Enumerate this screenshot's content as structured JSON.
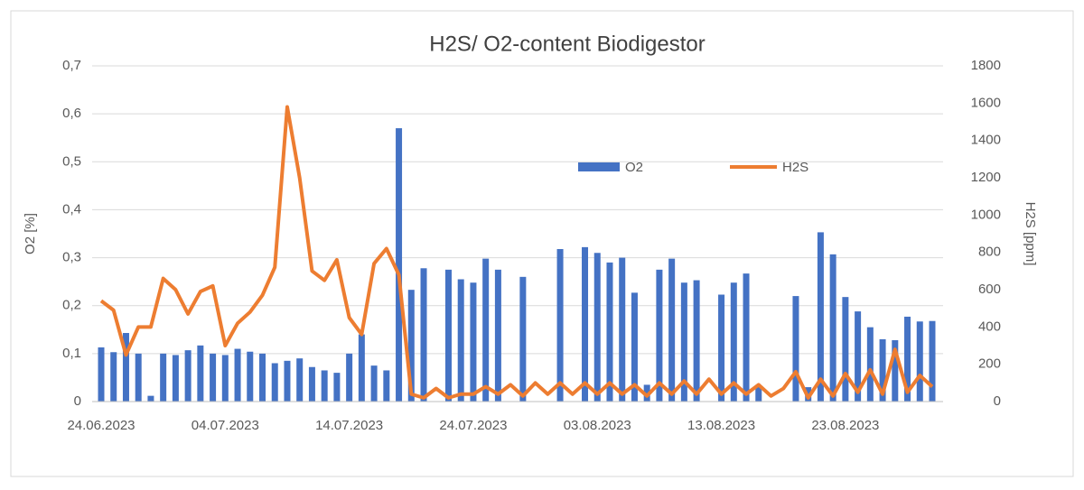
{
  "chart_data": {
    "type": "bar-line",
    "title": "H2S/ O2-content  Biodigestor",
    "ylabel": "O2 [%]",
    "y2label": "H2S [ppm]",
    "x": [
      "24.06.2023",
      "25.06.2023",
      "26.06.2023",
      "27.06.2023",
      "28.06.2023",
      "29.06.2023",
      "30.06.2023",
      "01.07.2023",
      "02.07.2023",
      "03.07.2023",
      "04.07.2023",
      "05.07.2023",
      "06.07.2023",
      "07.07.2023",
      "08.07.2023",
      "09.07.2023",
      "10.07.2023",
      "11.07.2023",
      "12.07.2023",
      "13.07.2023",
      "14.07.2023",
      "15.07.2023",
      "16.07.2023",
      "17.07.2023",
      "18.07.2023",
      "19.07.2023",
      "20.07.2023",
      "21.07.2023",
      "22.07.2023",
      "23.07.2023",
      "24.07.2023",
      "25.07.2023",
      "26.07.2023",
      "27.07.2023",
      "28.07.2023",
      "29.07.2023",
      "30.07.2023",
      "31.07.2023",
      "01.08.2023",
      "02.08.2023",
      "03.08.2023",
      "04.08.2023",
      "05.08.2023",
      "06.08.2023",
      "07.08.2023",
      "08.08.2023",
      "09.08.2023",
      "10.08.2023",
      "11.08.2023",
      "12.08.2023",
      "13.08.2023",
      "14.08.2023",
      "15.08.2023",
      "16.08.2023",
      "17.08.2023",
      "18.08.2023",
      "19.08.2023",
      "20.08.2023",
      "21.08.2023",
      "22.08.2023",
      "23.08.2023",
      "24.08.2023",
      "25.08.2023",
      "26.08.2023",
      "27.08.2023",
      "28.08.2023",
      "29.08.2023",
      "30.08.2023"
    ],
    "xticks": [
      "24.06.2023",
      "04.07.2023",
      "14.07.2023",
      "24.07.2023",
      "03.08.2023",
      "13.08.2023",
      "23.08.2023"
    ],
    "ylim": [
      0,
      0.7
    ],
    "yticks": [
      0,
      {
        "value": 0.1,
        "label": "0,1"
      },
      {
        "value": 0.2,
        "label": "0,2"
      },
      {
        "value": 0.3,
        "label": "0,3"
      },
      {
        "value": 0.4,
        "label": "0,4"
      },
      {
        "value": 0.5,
        "label": "0,5"
      },
      {
        "value": 0.6,
        "label": "0,6"
      },
      {
        "value": 0.7,
        "label": "0,7"
      }
    ],
    "y2lim": [
      0,
      1800
    ],
    "y2ticks": [
      0,
      200,
      400,
      600,
      800,
      1000,
      1200,
      1400,
      1600,
      1800
    ],
    "grid": true,
    "legend": "top-right",
    "series": [
      {
        "name": "O2",
        "type": "bar",
        "color": "#4472c4",
        "values": [
          0.113,
          0.103,
          0.143,
          0.1,
          0.012,
          0.1,
          0.097,
          0.107,
          0.117,
          0.1,
          0.097,
          0.11,
          0.104,
          0.1,
          0.08,
          0.085,
          0.09,
          0.072,
          0.065,
          0.06,
          0.1,
          0.14,
          0.075,
          0.065,
          0.57,
          0.233,
          0.278,
          null,
          0.275,
          0.255,
          0.248,
          0.298,
          0.275,
          null,
          0.26,
          null,
          null,
          0.318,
          null,
          0.322,
          0.31,
          0.29,
          0.3,
          0.227,
          0.035,
          0.275,
          0.298,
          0.248,
          0.253,
          null,
          0.223,
          0.248,
          0.267,
          0.03,
          null,
          null,
          0.22,
          0.03,
          0.353,
          0.307,
          0.218,
          0.188,
          0.155,
          0.13,
          0.128,
          0.177,
          0.167,
          0.168
        ]
      },
      {
        "name": "H2S",
        "type": "line",
        "axis": "y2",
        "color": "#ed7d31",
        "values": [
          540,
          490,
          250,
          400,
          400,
          660,
          600,
          470,
          590,
          620,
          300,
          420,
          480,
          570,
          720,
          1580,
          1200,
          700,
          650,
          760,
          450,
          360,
          740,
          820,
          680,
          40,
          20,
          70,
          20,
          40,
          40,
          80,
          40,
          90,
          30,
          100,
          40,
          100,
          40,
          100,
          40,
          100,
          40,
          90,
          30,
          100,
          40,
          110,
          40,
          120,
          40,
          100,
          40,
          90,
          30,
          70,
          160,
          20,
          120,
          30,
          150,
          50,
          170,
          40,
          280,
          50,
          140,
          80
        ]
      }
    ]
  }
}
